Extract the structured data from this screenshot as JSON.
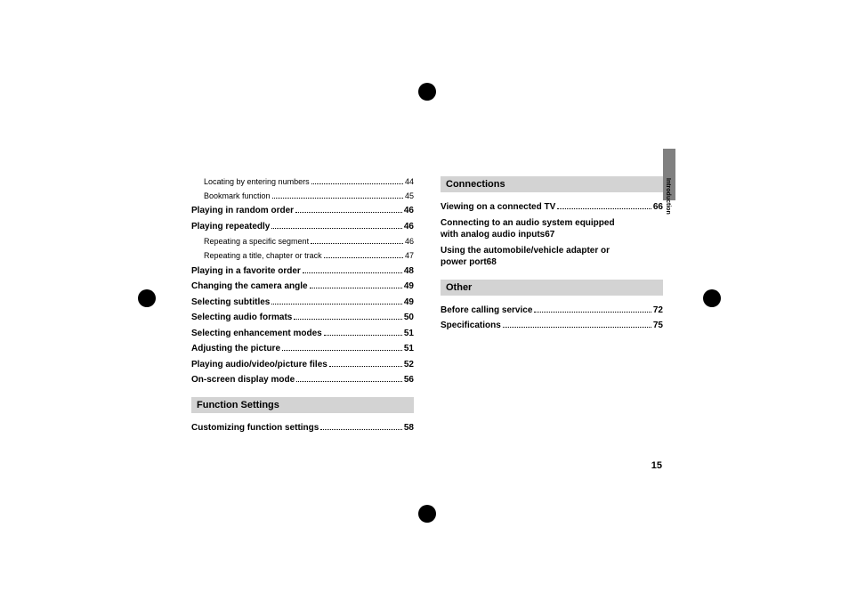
{
  "pageNumber": "15",
  "sideLabel": "Introduction",
  "leftColumn": {
    "preItems": [
      {
        "label": "Locating by entering numbers",
        "page": "44",
        "sub": true
      },
      {
        "label": "Bookmark function",
        "page": "45",
        "sub": true
      },
      {
        "label": "Playing in random order",
        "page": "46",
        "bold": true
      },
      {
        "label": "Playing repeatedly",
        "page": "46",
        "bold": true
      },
      {
        "label": "Repeating a specific segment",
        "page": "46",
        "sub": true
      },
      {
        "label": "Repeating a title, chapter or track",
        "page": "47",
        "sub": true
      },
      {
        "label": "Playing in a favorite order",
        "page": "48",
        "bold": true
      },
      {
        "label": "Changing the camera angle",
        "page": "49",
        "bold": true
      },
      {
        "label": "Selecting subtitles",
        "page": "49",
        "bold": true
      },
      {
        "label": "Selecting audio formats",
        "page": "50",
        "bold": true
      },
      {
        "label": "Selecting enhancement modes",
        "page": "51",
        "bold": true
      },
      {
        "label": "Adjusting the picture",
        "page": "51",
        "bold": true
      },
      {
        "label": "Playing audio/video/picture files",
        "page": "52",
        "bold": true
      },
      {
        "label": "On-screen display mode",
        "page": "56",
        "bold": true
      }
    ],
    "section": "Function Settings",
    "sectionItems": [
      {
        "label": "Customizing function settings",
        "page": "58",
        "bold": true
      }
    ]
  },
  "rightColumn": {
    "section1": "Connections",
    "section1Items": [
      {
        "label": "Viewing on a connected TV",
        "page": "66",
        "bold": true
      },
      {
        "line1": "Connecting to an audio system equipped",
        "line2": "with analog audio inputs",
        "page": "67",
        "multi": true
      },
      {
        "line1": "Using the automobile/vehicle adapter or",
        "line2": "power port",
        "page": "68",
        "multi": true
      }
    ],
    "section2": "Other",
    "section2Items": [
      {
        "label": "Before calling service",
        "page": "72",
        "bold": true
      },
      {
        "label": "Specifications",
        "page": "75",
        "bold": true
      }
    ]
  },
  "cropMarks": {
    "color": "#000000"
  }
}
